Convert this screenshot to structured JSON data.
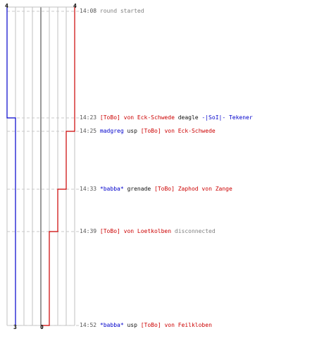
{
  "scores": {
    "blue_start": "4",
    "red_start": "4",
    "blue_end": "3",
    "red_end": "0"
  },
  "colors": {
    "blue_team": "#0000cc",
    "red_team": "#cc0000",
    "grid": "#c0c0c0",
    "guide": "#c8c8c8"
  },
  "events": [
    {
      "time": "14:08",
      "parts": [
        {
          "text": "round started",
          "style": "gray"
        }
      ]
    },
    {
      "time": "14:23",
      "parts": [
        {
          "text": "[ToBo] von Eck-Schwede",
          "style": "red"
        },
        {
          "text": " deagle ",
          "style": "black"
        },
        {
          "text": "-|SoI|- Tekener",
          "style": "blue"
        }
      ]
    },
    {
      "time": "14:25",
      "parts": [
        {
          "text": "madgreg",
          "style": "blue"
        },
        {
          "text": " usp ",
          "style": "black"
        },
        {
          "text": "[ToBo] von Eck-Schwede",
          "style": "red"
        }
      ]
    },
    {
      "time": "14:33",
      "parts": [
        {
          "text": "*babba*",
          "style": "blue"
        },
        {
          "text": " grenade ",
          "style": "black"
        },
        {
          "text": "[ToBo] Zaphod von Zange",
          "style": "red"
        }
      ]
    },
    {
      "time": "14:39",
      "parts": [
        {
          "text": "[ToBo] von Loetkolben",
          "style": "red"
        },
        {
          "text": " disconnected",
          "style": "gray"
        }
      ]
    },
    {
      "time": "14:52",
      "parts": [
        {
          "text": "*babba*",
          "style": "blue"
        },
        {
          "text": " usp ",
          "style": "black"
        },
        {
          "text": "[ToBo] von Feilkloben",
          "style": "red"
        }
      ]
    }
  ]
}
